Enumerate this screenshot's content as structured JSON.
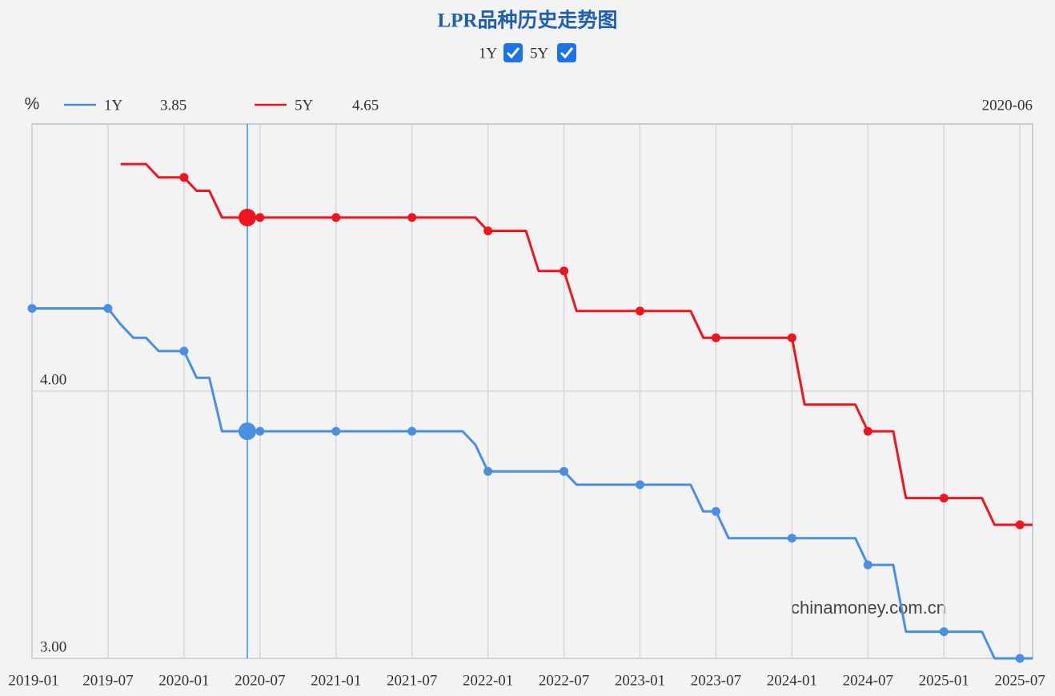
{
  "chart_data": {
    "type": "line",
    "title": "LPR品种历史走势图",
    "unit": "%",
    "watermark": "chinamoney.com.cn",
    "cursor": "2020-06",
    "x": [
      "2019-01",
      "2019-02",
      "2019-03",
      "2019-04",
      "2019-05",
      "2019-06",
      "2019-07",
      "2019-08",
      "2019-09",
      "2019-10",
      "2019-11",
      "2019-12",
      "2020-01",
      "2020-02",
      "2020-03",
      "2020-04",
      "2020-05",
      "2020-06",
      "2020-07",
      "2020-08",
      "2020-09",
      "2020-10",
      "2020-11",
      "2020-12",
      "2021-01",
      "2021-02",
      "2021-03",
      "2021-04",
      "2021-05",
      "2021-06",
      "2021-07",
      "2021-08",
      "2021-09",
      "2021-10",
      "2021-11",
      "2021-12",
      "2022-01",
      "2022-02",
      "2022-03",
      "2022-04",
      "2022-05",
      "2022-06",
      "2022-07",
      "2022-08",
      "2022-09",
      "2022-10",
      "2022-11",
      "2022-12",
      "2023-01",
      "2023-02",
      "2023-03",
      "2023-04",
      "2023-05",
      "2023-06",
      "2023-07",
      "2023-08",
      "2023-09",
      "2023-10",
      "2023-11",
      "2023-12",
      "2024-01",
      "2024-02",
      "2024-03",
      "2024-04",
      "2024-05",
      "2024-06",
      "2024-07",
      "2024-08",
      "2024-09",
      "2024-10",
      "2024-11",
      "2024-12",
      "2025-01",
      "2025-02",
      "2025-03",
      "2025-04",
      "2025-05",
      "2025-06",
      "2025-07",
      "2025-08"
    ],
    "series": [
      {
        "name": "1Y",
        "color": "#4a90e2",
        "values": [
          4.31,
          4.31,
          4.31,
          4.31,
          4.31,
          4.31,
          4.31,
          4.25,
          4.2,
          4.2,
          4.15,
          4.15,
          4.15,
          4.05,
          4.05,
          3.85,
          3.85,
          3.85,
          3.85,
          3.85,
          3.85,
          3.85,
          3.85,
          3.85,
          3.85,
          3.85,
          3.85,
          3.85,
          3.85,
          3.85,
          3.85,
          3.85,
          3.85,
          3.85,
          3.85,
          3.8,
          3.7,
          3.7,
          3.7,
          3.7,
          3.7,
          3.7,
          3.7,
          3.65,
          3.65,
          3.65,
          3.65,
          3.65,
          3.65,
          3.65,
          3.65,
          3.65,
          3.65,
          3.55,
          3.55,
          3.45,
          3.45,
          3.45,
          3.45,
          3.45,
          3.45,
          3.45,
          3.45,
          3.45,
          3.45,
          3.45,
          3.35,
          3.35,
          3.35,
          3.1,
          3.1,
          3.1,
          3.1,
          3.1,
          3.1,
          3.1,
          3.0,
          3.0,
          3.0,
          3.0
        ]
      },
      {
        "name": "5Y",
        "color": "#f0141e",
        "values": [
          null,
          null,
          null,
          null,
          null,
          null,
          null,
          4.85,
          4.85,
          4.85,
          4.8,
          4.8,
          4.8,
          4.75,
          4.75,
          4.65,
          4.65,
          4.65,
          4.65,
          4.65,
          4.65,
          4.65,
          4.65,
          4.65,
          4.65,
          4.65,
          4.65,
          4.65,
          4.65,
          4.65,
          4.65,
          4.65,
          4.65,
          4.65,
          4.65,
          4.65,
          4.6,
          4.6,
          4.6,
          4.6,
          4.45,
          4.45,
          4.45,
          4.3,
          4.3,
          4.3,
          4.3,
          4.3,
          4.3,
          4.3,
          4.3,
          4.3,
          4.3,
          4.2,
          4.2,
          4.2,
          4.2,
          4.2,
          4.2,
          4.2,
          4.2,
          3.95,
          3.95,
          3.95,
          3.95,
          3.95,
          3.85,
          3.85,
          3.85,
          3.6,
          3.6,
          3.6,
          3.6,
          3.6,
          3.6,
          3.6,
          3.5,
          3.5,
          3.5,
          3.5
        ]
      }
    ],
    "ylim": [
      3,
      5
    ],
    "yticks": [
      {
        "value": 3,
        "label": "3.00"
      },
      {
        "value": 4,
        "label": "4.00"
      }
    ],
    "grid": true
  }
}
